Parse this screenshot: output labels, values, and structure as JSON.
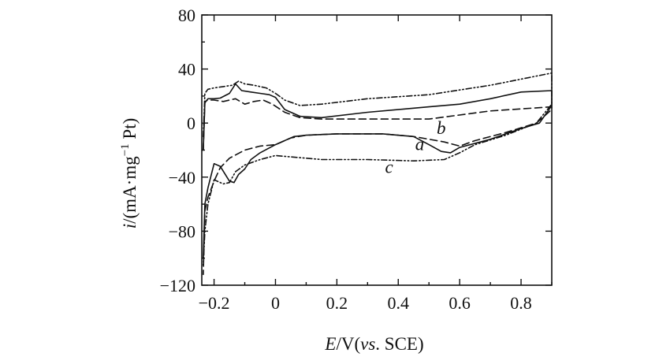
{
  "chart_data": {
    "type": "line",
    "title": "",
    "xlabel": {
      "italic": "E",
      "rest": "/V(",
      "italic2": "vs",
      "rest2": ". SCE)"
    },
    "ylabel": {
      "italic": "i",
      "rest": "/(mA·mg",
      "sup": "−1",
      "rest2": " Pt)"
    },
    "xlim": [
      -0.24,
      0.9
    ],
    "ylim": [
      -120,
      80
    ],
    "xticks": [
      {
        "value": -0.2,
        "label": "−0.2"
      },
      {
        "value": 0,
        "label": "0"
      },
      {
        "value": 0.2,
        "label": "0.2"
      },
      {
        "value": 0.4,
        "label": "0.4"
      },
      {
        "value": 0.6,
        "label": "0.6"
      },
      {
        "value": 0.8,
        "label": "0.8"
      }
    ],
    "yticks": [
      {
        "value": 80,
        "label": "80"
      },
      {
        "value": 40,
        "label": "40"
      },
      {
        "value": 0,
        "label": "0"
      },
      {
        "value": -40,
        "label": "−40"
      },
      {
        "value": -80,
        "label": "−80"
      },
      {
        "value": -120,
        "label": "−120"
      }
    ],
    "grid": false,
    "series": [
      {
        "name": "a",
        "style": "solid",
        "x": [
          -0.235,
          -0.23,
          -0.22,
          -0.2,
          -0.18,
          -0.15,
          -0.13,
          -0.11,
          -0.08,
          -0.05,
          -0.02,
          0.0,
          0.03,
          0.08,
          0.15,
          0.3,
          0.5,
          0.6,
          0.7,
          0.8,
          0.9,
          0.9,
          0.86,
          0.8,
          0.7,
          0.6,
          0.57,
          0.54,
          0.5,
          0.45,
          0.35,
          0.2,
          0.1,
          0.06,
          0.0,
          -0.05,
          -0.08,
          -0.1,
          -0.12,
          -0.135,
          -0.15,
          -0.18,
          -0.2,
          -0.22,
          -0.23,
          -0.235
        ],
        "y": [
          -20,
          15,
          18,
          18,
          18.5,
          22,
          29,
          24,
          23,
          22,
          21,
          19,
          10,
          5,
          4,
          8,
          12,
          14,
          18,
          23,
          24,
          13,
          0,
          -4,
          -12,
          -18,
          -22,
          -21,
          -16,
          -10,
          -8,
          -8,
          -9,
          -10,
          -16,
          -22,
          -27,
          -34,
          -38,
          -44,
          -43,
          -32,
          -30,
          -48,
          -60,
          -100
        ]
      },
      {
        "name": "b",
        "style": "dashed",
        "x": [
          -0.235,
          -0.23,
          -0.22,
          -0.2,
          -0.17,
          -0.13,
          -0.1,
          -0.07,
          -0.04,
          -0.01,
          0.03,
          0.08,
          0.15,
          0.3,
          0.5,
          0.7,
          0.9,
          0.9,
          0.85,
          0.75,
          0.65,
          0.6,
          0.55,
          0.45,
          0.35,
          0.2,
          0.1,
          0.05,
          0.0,
          -0.05,
          -0.1,
          -0.15,
          -0.18,
          -0.2,
          -0.22,
          -0.23,
          -0.235
        ],
        "y": [
          -20,
          16,
          17,
          17,
          16,
          18,
          14,
          16,
          17,
          14,
          8,
          4,
          3,
          3,
          3,
          9,
          12,
          10,
          0,
          -7,
          -13,
          -17,
          -14,
          -10,
          -8,
          -8,
          -9,
          -11,
          -16,
          -17,
          -20,
          -26,
          -33,
          -43,
          -55,
          -65,
          -112
        ]
      },
      {
        "name": "c",
        "style": "dashdotdot",
        "x": [
          -0.235,
          -0.23,
          -0.22,
          -0.2,
          -0.17,
          -0.14,
          -0.12,
          -0.1,
          -0.07,
          -0.03,
          0.0,
          0.03,
          0.08,
          0.15,
          0.3,
          0.5,
          0.7,
          0.9,
          0.9,
          0.85,
          0.75,
          0.65,
          0.6,
          0.55,
          0.45,
          0.3,
          0.15,
          0.05,
          0.0,
          -0.05,
          -0.1,
          -0.13,
          -0.15,
          -0.17,
          -0.2,
          -0.22,
          -0.23,
          -0.235
        ],
        "y": [
          -10,
          22,
          25,
          26,
          27,
          28,
          31,
          29,
          28,
          26,
          22,
          17,
          13,
          14,
          18,
          21,
          28,
          37,
          14,
          0,
          -9,
          -16,
          -22,
          -27,
          -28,
          -27,
          -27,
          -25,
          -24,
          -27,
          -31,
          -36,
          -44,
          -45,
          -42,
          -60,
          -80,
          -105
        ]
      }
    ],
    "annotations": [
      {
        "text": "a",
        "x": 0.47,
        "y": -20
      },
      {
        "text": "b",
        "x": 0.54,
        "y": -8
      },
      {
        "text": "c",
        "x": 0.37,
        "y": -37
      }
    ]
  }
}
